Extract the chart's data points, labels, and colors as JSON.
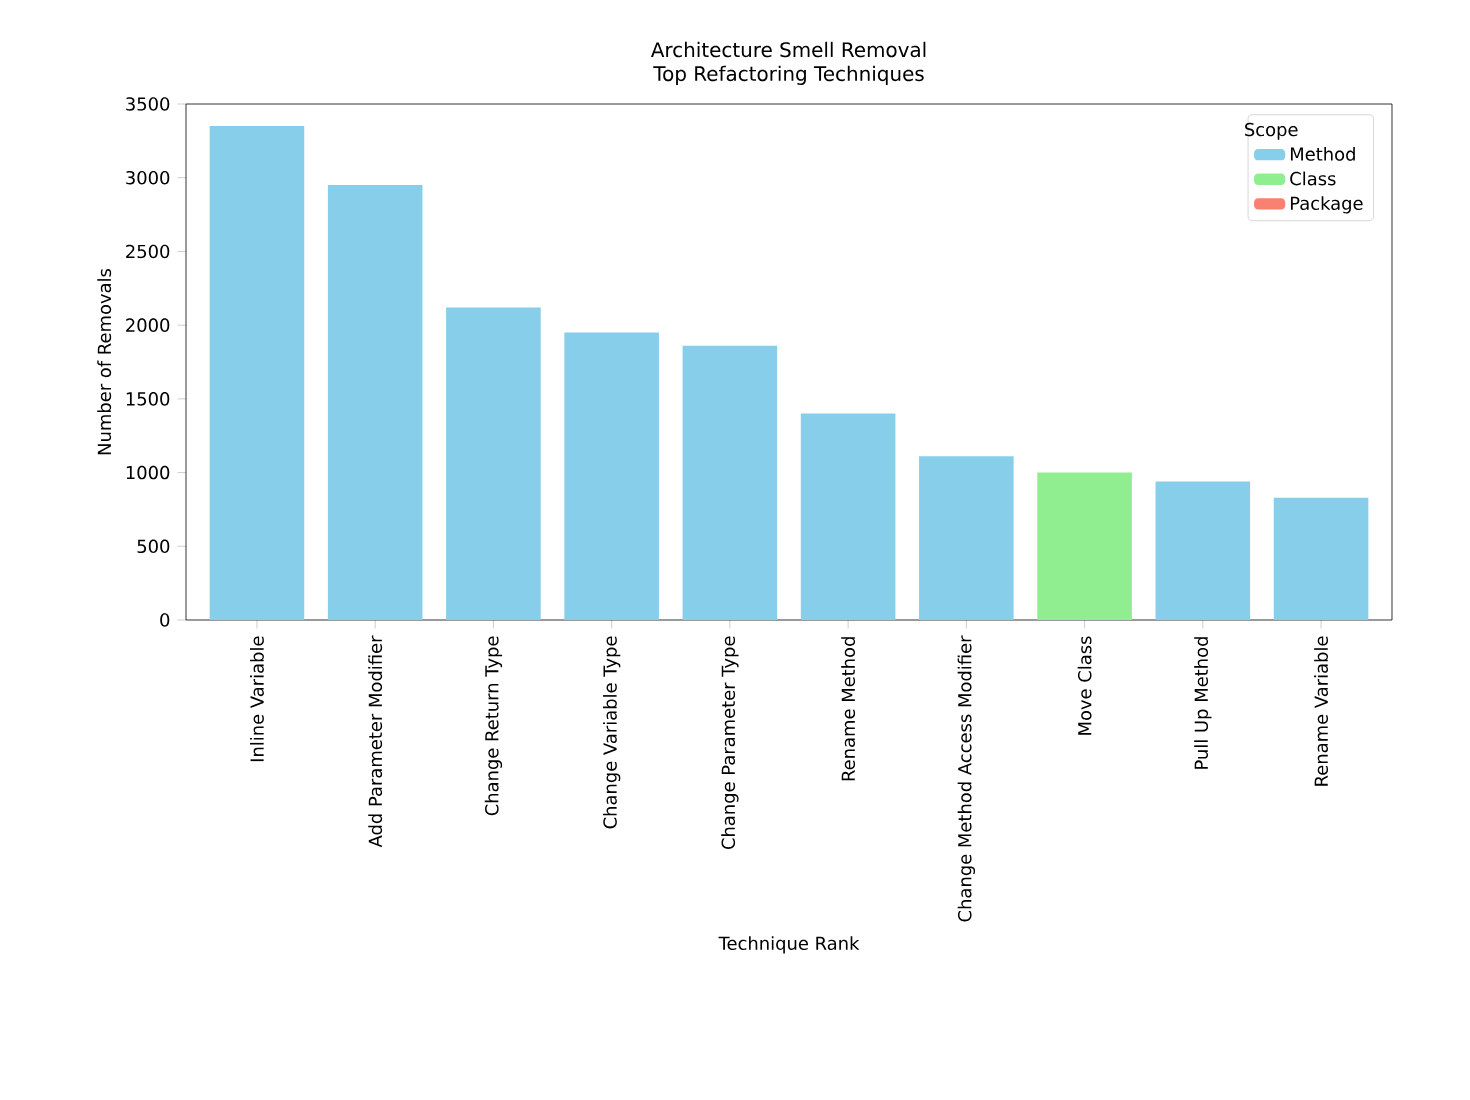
{
  "chart_data": {
    "type": "bar",
    "title": "Architecture Smell Removal\nTop Refactoring Techniques",
    "xlabel": "Technique Rank",
    "ylabel": "Number of Removals",
    "legend_title": "Scope",
    "legend": "top right",
    "grid": false,
    "categories": [
      "Inline Variable",
      "Add Parameter Modifier",
      "Change Return Type",
      "Change Variable Type",
      "Change Parameter Type",
      "Rename Method",
      "Change Method Access Modifier",
      "Move Class",
      "Pull Up Method",
      "Rename Variable"
    ],
    "series": [
      {
        "name": "Method",
        "color": "#87ceeb",
        "values": [
          3350,
          2950,
          2120,
          1950,
          1860,
          1400,
          1110,
          null,
          940,
          830
        ]
      },
      {
        "name": "Class",
        "color": "#90ee90",
        "values": [
          null,
          null,
          null,
          null,
          null,
          null,
          null,
          1000,
          null,
          null
        ]
      },
      {
        "name": "Package",
        "color": "#fa8072",
        "values": [
          null,
          null,
          null,
          null,
          null,
          null,
          null,
          null,
          null,
          null
        ]
      }
    ],
    "ylim": [
      0,
      3500
    ],
    "yticks": [
      0,
      500,
      1000,
      1500,
      2000,
      2500,
      3000,
      3500
    ]
  }
}
